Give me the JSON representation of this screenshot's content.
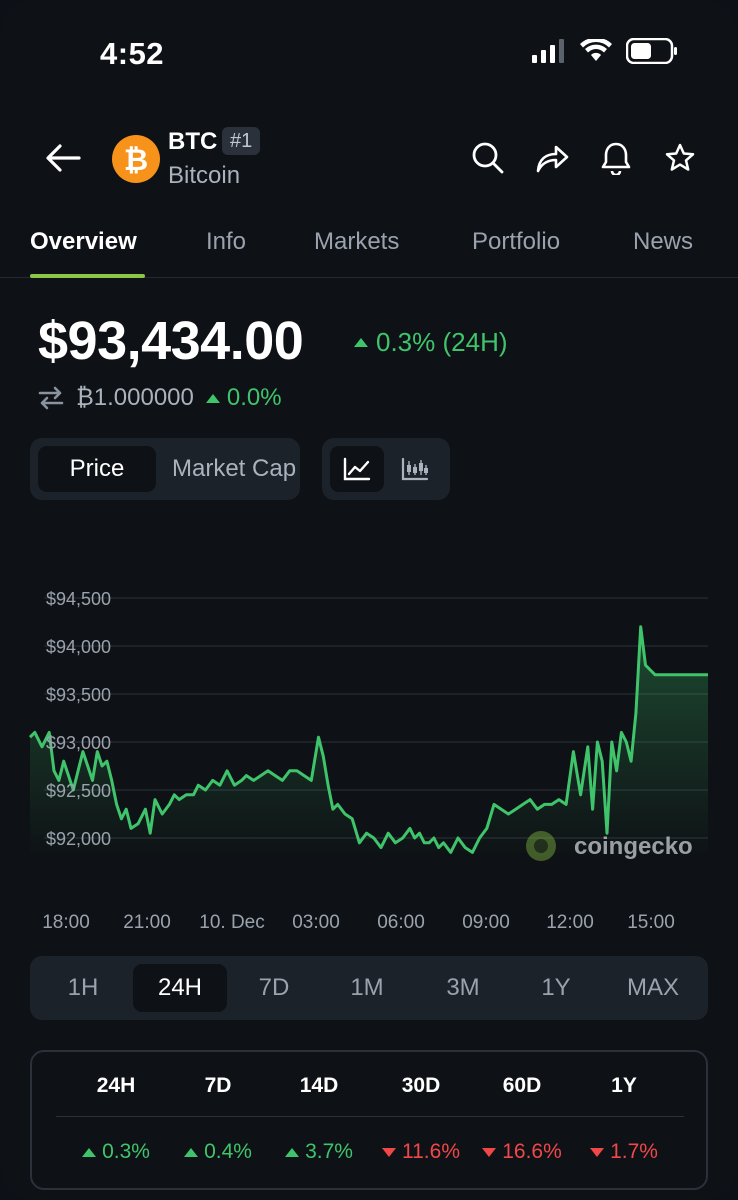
{
  "status_bar": {
    "time": "4:52"
  },
  "header": {
    "symbol": "BTC",
    "rank": "#1",
    "name": "Bitcoin"
  },
  "tabs": [
    "Overview",
    "Info",
    "Markets",
    "Portfolio",
    "News"
  ],
  "price": {
    "value": "$93,434.00",
    "change_24h": "0.3% (24H)",
    "btc_value": "₿1.000000",
    "btc_change": "0.0%"
  },
  "toggles": {
    "price": "Price",
    "market_cap": "Market Cap"
  },
  "chart_data": {
    "type": "line",
    "title": "",
    "y_ticks": [
      "$94,500",
      "$94,000",
      "$93,500",
      "$93,000",
      "$92,500",
      "$92,000"
    ],
    "x_ticks": [
      "18:00",
      "21:00",
      "10. Dec",
      "03:00",
      "06:00",
      "09:00",
      "12:00",
      "15:00"
    ],
    "ylim": [
      91500,
      94800
    ],
    "watermark": "coingecko",
    "x": [
      0,
      0.2,
      0.5,
      0.8,
      1.0,
      1.2,
      1.4,
      1.6,
      1.8,
      2.0,
      2.2,
      2.4,
      2.6,
      2.8,
      3.0,
      3.2,
      3.4,
      3.6,
      3.8,
      4.0,
      4.2,
      4.5,
      4.8,
      5.0,
      5.2,
      5.5,
      5.8,
      6.0,
      6.2,
      6.5,
      6.8,
      7.0,
      7.3,
      7.6,
      7.9,
      8.2,
      8.5,
      8.8,
      9.0,
      9.3,
      9.6,
      9.9,
      10.2,
      10.5,
      10.8,
      11.1,
      11.4,
      11.7,
      12.0,
      12.2,
      12.4,
      12.6,
      12.8,
      13.1,
      13.4,
      13.7,
      14.0,
      14.3,
      14.6,
      14.9,
      15.2,
      15.5,
      15.8,
      16.0,
      16.2,
      16.4,
      16.6,
      16.8,
      17.0,
      17.2,
      17.5,
      17.8,
      18.1,
      18.4,
      18.7,
      19.0,
      19.3,
      19.6,
      19.9,
      20.2,
      20.5,
      20.8,
      21.1,
      21.4,
      21.7,
      22.0,
      22.3,
      22.6,
      22.9,
      23.2,
      23.4,
      23.6,
      23.8,
      24.0,
      24.2,
      24.4,
      24.6,
      24.8,
      25.0,
      25.2,
      25.4,
      25.6,
      25.8,
      26.0,
      26.2,
      26.4,
      26.6,
      26.8,
      27.0,
      27.2,
      27.4,
      27.6,
      27.8,
      28.0,
      28.2
    ],
    "series": [
      {
        "values": [
          93050,
          93100,
          92950,
          93100,
          92700,
          92600,
          92800,
          92650,
          92500,
          92700,
          92900,
          92750,
          92600,
          92900,
          92750,
          92800,
          92600,
          92350,
          92200,
          92300,
          92100,
          92150,
          92300,
          92050,
          92400,
          92250,
          92350,
          92450,
          92400,
          92450,
          92450,
          92550,
          92500,
          92600,
          92550,
          92700,
          92550,
          92600,
          92650,
          92600,
          92650,
          92700,
          92650,
          92600,
          92700,
          92700,
          92650,
          92600,
          93050,
          92850,
          92550,
          92300,
          92350,
          92250,
          92200,
          91950,
          92050,
          92000,
          91900,
          92050,
          91950,
          92000,
          92100,
          92000,
          92050,
          91950,
          91950,
          92000,
          91900,
          91950,
          91850,
          92000,
          91900,
          91850,
          92000,
          92100,
          92350,
          92300,
          92250,
          92300,
          92350,
          92400,
          92300,
          92350,
          92350,
          92400,
          92350,
          92900,
          92450,
          92950,
          92300,
          93000,
          92800,
          92050,
          93000,
          92700,
          93100,
          93000,
          92800,
          93300,
          94200,
          93800,
          93750,
          93700,
          93700,
          93700,
          93700,
          93700,
          93700,
          93700,
          93700,
          93700,
          93700,
          93700,
          93700
        ]
      }
    ]
  },
  "ranges": [
    "1H",
    "24H",
    "7D",
    "1M",
    "3M",
    "1Y",
    "MAX"
  ],
  "performance": {
    "headers": [
      "24H",
      "7D",
      "14D",
      "30D",
      "60D",
      "1Y"
    ],
    "values": [
      "0.3%",
      "0.4%",
      "3.7%",
      "11.6%",
      "16.6%",
      "1.7%"
    ],
    "direction": [
      "up",
      "up",
      "up",
      "down",
      "down",
      "down"
    ]
  },
  "colors": {
    "up": "#3fc46b",
    "down": "#f04848",
    "accent": "#8dc647",
    "btc": "#f7931a"
  }
}
